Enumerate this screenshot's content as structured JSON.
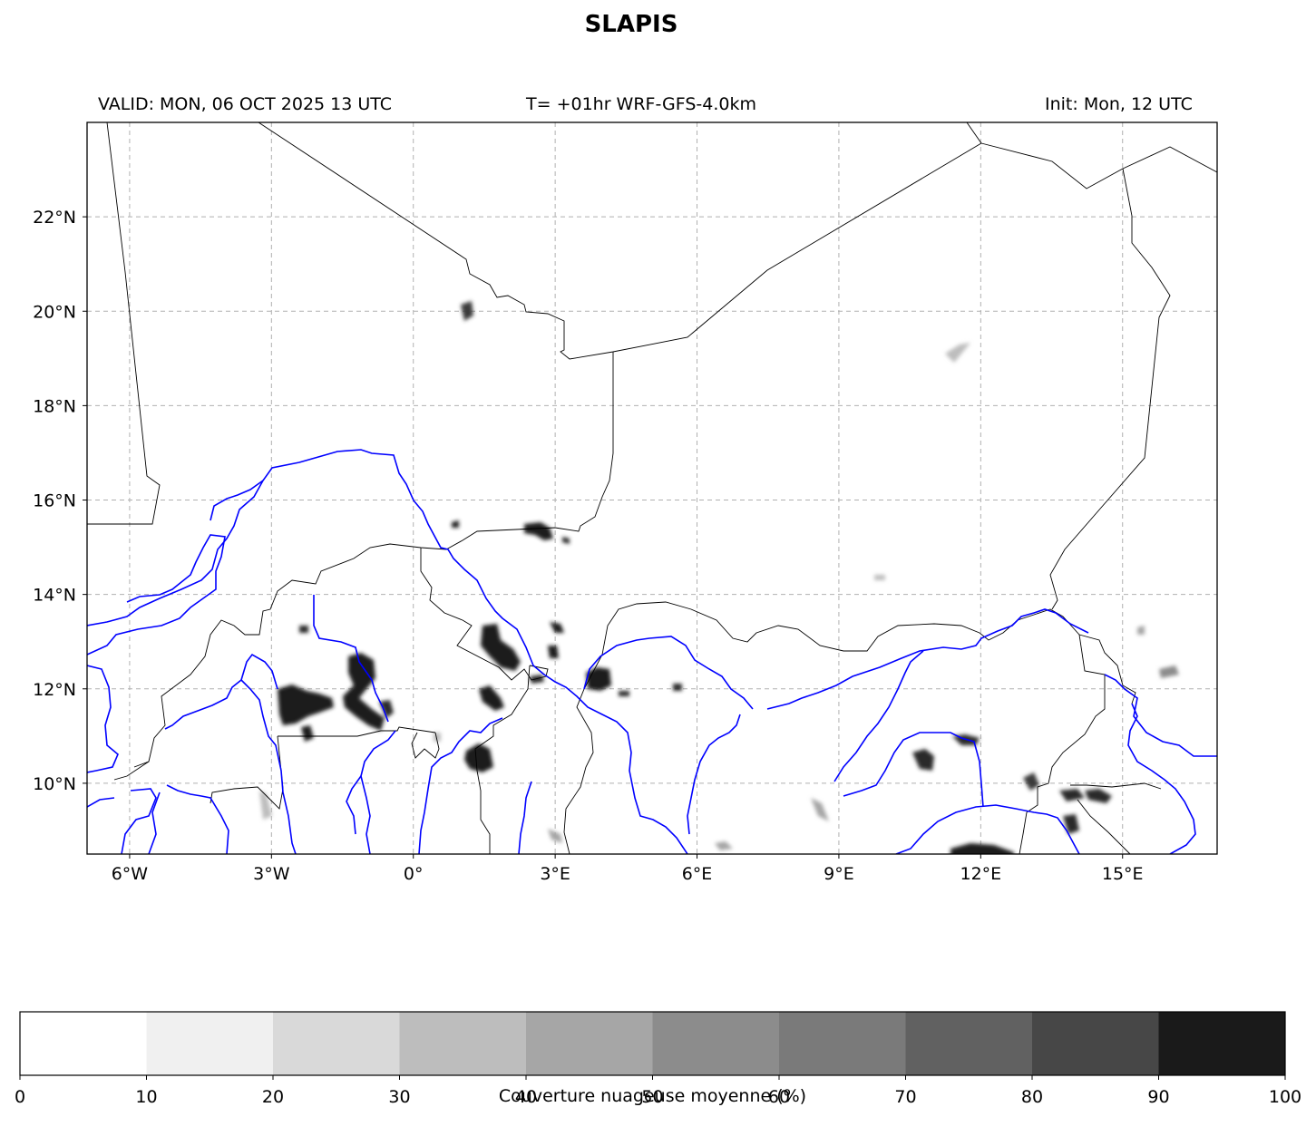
{
  "title": "SLAPIS",
  "valid_text": "VALID: MON, 06 OCT 2025 13 UTC",
  "model_text": "T= +01hr WRF-GFS-4.0km",
  "init_text": "Init: Mon, 12 UTC",
  "map": {
    "lon_range": [
      -6.9,
      17.0
    ],
    "lat_range": [
      8.5,
      24.0
    ],
    "lon_ticks": [
      {
        "value": -6,
        "label": "6°W"
      },
      {
        "value": -3,
        "label": "3°W"
      },
      {
        "value": 0,
        "label": "0°"
      },
      {
        "value": 3,
        "label": "3°E"
      },
      {
        "value": 6,
        "label": "6°E"
      },
      {
        "value": 9,
        "label": "9°E"
      },
      {
        "value": 12,
        "label": "12°E"
      },
      {
        "value": 15,
        "label": "15°E"
      }
    ],
    "lat_ticks": [
      {
        "value": 10,
        "label": "10°N"
      },
      {
        "value": 12,
        "label": "12°N"
      },
      {
        "value": 14,
        "label": "14°N"
      },
      {
        "value": 16,
        "label": "16°N"
      },
      {
        "value": 18,
        "label": "18°N"
      },
      {
        "value": 20,
        "label": "20°N"
      },
      {
        "value": 22,
        "label": "22°N"
      }
    ],
    "gridlines": true,
    "border_color": "#000000",
    "river_color": "#0000ff",
    "grid_color": "#b0b0b0"
  },
  "colorbar": {
    "label": "Couverture nuageuse moyenne (%)",
    "ticks": [
      "0",
      "10",
      "20",
      "30",
      "40",
      "50",
      "60",
      "70",
      "80",
      "90",
      "100"
    ],
    "colors": [
      "#ffffff",
      "#f0f0f0",
      "#d9d9d9",
      "#bdbdbd",
      "#a6a6a6",
      "#8c8c8c",
      "#7a7a7a",
      "#616161",
      "#474747",
      "#1a1a1a"
    ]
  }
}
